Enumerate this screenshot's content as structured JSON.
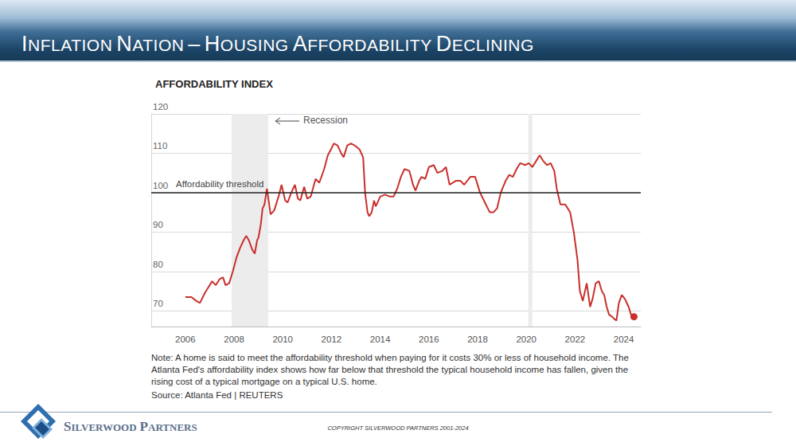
{
  "header": {
    "title": "INFLATION NATION – HOUSING AFFORDABILITY DECLINING"
  },
  "chart_data": {
    "type": "line",
    "title": "AFFORDABILITY INDEX",
    "x": [
      2006.0,
      2006.25,
      2006.45,
      2006.6,
      2006.8,
      2006.95,
      2007.1,
      2007.25,
      2007.4,
      2007.55,
      2007.65,
      2007.8,
      2007.95,
      2008.1,
      2008.25,
      2008.4,
      2008.5,
      2008.6,
      2008.75,
      2008.85,
      2008.95,
      2009.0,
      2009.1,
      2009.17,
      2009.25,
      2009.35,
      2009.5,
      2009.65,
      2009.85,
      2009.95,
      2010.1,
      2010.2,
      2010.35,
      2010.5,
      2010.62,
      2010.72,
      2010.88,
      2011.0,
      2011.15,
      2011.35,
      2011.5,
      2011.7,
      2011.85,
      2011.98,
      2012.1,
      2012.25,
      2012.4,
      2012.5,
      2012.65,
      2012.8,
      2012.95,
      2013.15,
      2013.3,
      2013.38,
      2013.48,
      2013.55,
      2013.65,
      2013.75,
      2013.82,
      2014.0,
      2014.2,
      2014.4,
      2014.55,
      2014.7,
      2014.85,
      2015.0,
      2015.2,
      2015.35,
      2015.45,
      2015.6,
      2015.7,
      2015.85,
      2016.0,
      2016.2,
      2016.35,
      2016.55,
      2016.7,
      2016.85,
      2017.1,
      2017.3,
      2017.45,
      2017.7,
      2017.9,
      2018.1,
      2018.3,
      2018.5,
      2018.65,
      2018.8,
      2018.95,
      2019.15,
      2019.3,
      2019.45,
      2019.6,
      2019.75,
      2019.95,
      2020.1,
      2020.25,
      2020.45,
      2020.55,
      2020.7,
      2020.85,
      2021.0,
      2021.15,
      2021.25,
      2021.4,
      2021.6,
      2021.8,
      2021.95,
      2022.1,
      2022.2,
      2022.32,
      2022.48,
      2022.62,
      2022.72,
      2022.85,
      2022.98,
      2023.1,
      2023.2,
      2023.3,
      2023.4,
      2023.52,
      2023.6,
      2023.7,
      2023.8,
      2023.92,
      2024.05,
      2024.2,
      2024.3,
      2024.42
    ],
    "values": [
      73.5,
      73.5,
      72.5,
      72,
      74.5,
      76,
      77.5,
      76.5,
      78,
      78.5,
      76.5,
      77,
      80,
      83.5,
      86,
      88,
      89,
      88,
      85.5,
      84.5,
      88,
      88.5,
      92,
      96,
      97,
      101,
      94.5,
      95.5,
      99.5,
      102,
      98,
      97.5,
      100,
      102,
      98.5,
      98,
      101.5,
      98.5,
      99,
      103.5,
      102.5,
      106,
      109.5,
      111,
      112.5,
      112,
      110,
      109,
      112,
      112.5,
      112,
      111,
      109,
      100,
      95,
      94,
      95,
      98,
      96.5,
      99,
      99.5,
      99,
      99,
      101,
      104,
      106,
      105.5,
      102,
      100.5,
      103,
      104,
      103.5,
      106.5,
      107,
      105,
      105.5,
      106.5,
      102,
      103,
      103,
      102,
      104,
      104,
      100,
      97.5,
      95,
      95,
      96,
      100,
      103,
      104.5,
      104,
      106,
      107.5,
      107,
      107.5,
      106.5,
      108.5,
      109.5,
      108,
      107,
      107.5,
      105.5,
      101,
      97,
      97,
      95,
      90,
      83,
      75,
      72.5,
      77,
      71,
      73,
      77,
      77.5,
      75,
      74,
      71,
      69,
      68.5,
      68,
      67.5,
      72,
      74,
      73,
      71,
      69,
      68.5
    ],
    "color": "#c8302c",
    "xlim": [
      2004.6,
      2024.7
    ],
    "xticks": [
      2006,
      2008,
      2010,
      2012,
      2014,
      2016,
      2018,
      2020,
      2022,
      2024
    ],
    "ylim": [
      66,
      120
    ],
    "yticks": [
      70,
      80,
      90,
      100,
      110,
      120
    ],
    "grid": true,
    "threshold": {
      "value": 100,
      "label": "Affordability threshold"
    },
    "recessions": [
      [
        2007.9,
        2009.4
      ],
      [
        2020.08,
        2020.25
      ]
    ],
    "recession_label": "Recession"
  },
  "note": "Note: A home is said to meet the affordability threshold when paying for it costs 30% or less of household income. The Atlanta Fed's affordability index shows how far below that threshold the typical household income has fallen, given the rising cost of a typical mortgage on a typical U.S. home.",
  "source": "Source: Atlanta Fed | REUTERS",
  "footer": {
    "logo": "SILVERWOOD PARTNERS",
    "copyright": "COPYRIGHT SILVERWOOD PARTNERS 2001-2024"
  }
}
